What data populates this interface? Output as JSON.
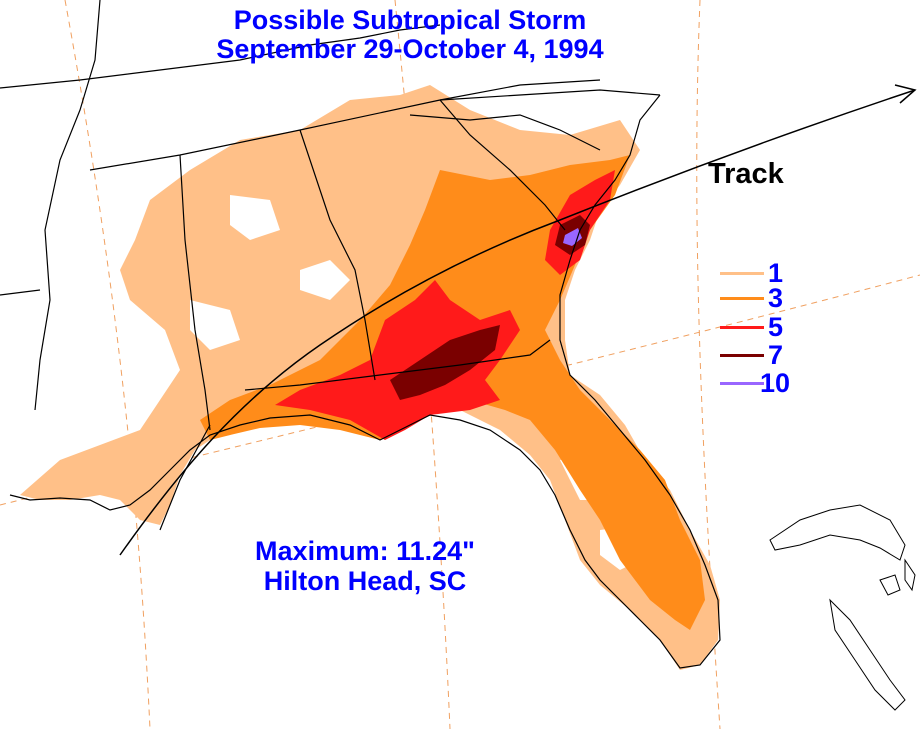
{
  "title": {
    "line1": "Possible Subtropical Storm",
    "line2": "September 29-October 4, 1994"
  },
  "track_label": "Track",
  "legend": {
    "items": [
      {
        "label": "1",
        "color": "#ffc088"
      },
      {
        "label": "3",
        "color": "#ff8c1a"
      },
      {
        "label": "5",
        "color": "#ff1a1a"
      },
      {
        "label": "7",
        "color": "#7a0000"
      },
      {
        "label": "10",
        "color": "#9966ff"
      }
    ]
  },
  "maximum": {
    "line1": "Maximum:  11.24\"",
    "line2": "Hilton Head, SC"
  },
  "colors": {
    "title_text": "#0000ff",
    "state_borders": "#000000",
    "graticule": "#ff9933",
    "track_line": "#000000"
  }
}
